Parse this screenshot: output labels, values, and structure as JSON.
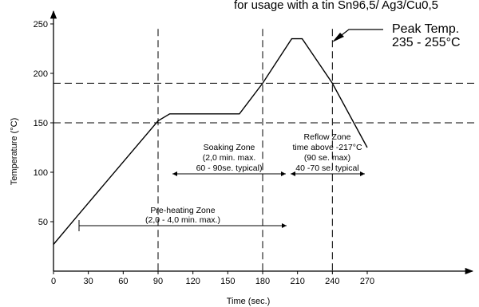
{
  "chart_data": {
    "type": "line",
    "title": "for usage with a tin Sn96,5/ Ag3/Cu0,5",
    "xlabel": "Time (sec.)",
    "ylabel": "Temperature (°C)",
    "xlim": [
      0,
      300
    ],
    "ylim": [
      0,
      260
    ],
    "xticks": [
      0,
      30,
      60,
      90,
      120,
      150,
      180,
      210,
      240,
      270
    ],
    "yticks": [
      50,
      100,
      150,
      200,
      250
    ],
    "grid": false,
    "series": [
      {
        "x": [
          0,
          20,
          90,
          100,
          160,
          180,
          205,
          214,
          240,
          270
        ],
        "y": [
          27,
          55,
          152,
          159,
          159,
          190,
          235,
          235,
          190,
          125
        ]
      }
    ],
    "reference_lines": {
      "horizontal": [
        150,
        190
      ],
      "vertical": [
        90,
        180,
        240
      ]
    },
    "annotations": {
      "peak_line1": "Peak Temp.",
      "peak_line2": "235 - 255°C",
      "soaking": [
        "Soaking Zone",
        "(2,0 min. max.",
        "60 - 90se. typical)"
      ],
      "reflow": [
        "Reflow Zone",
        "time above -217°C",
        "(90 se. max)",
        "40 -70 se. typical"
      ],
      "preheat": [
        "Pre-heating Zone",
        "(2,0 - 4,0 min. max.)"
      ]
    }
  }
}
